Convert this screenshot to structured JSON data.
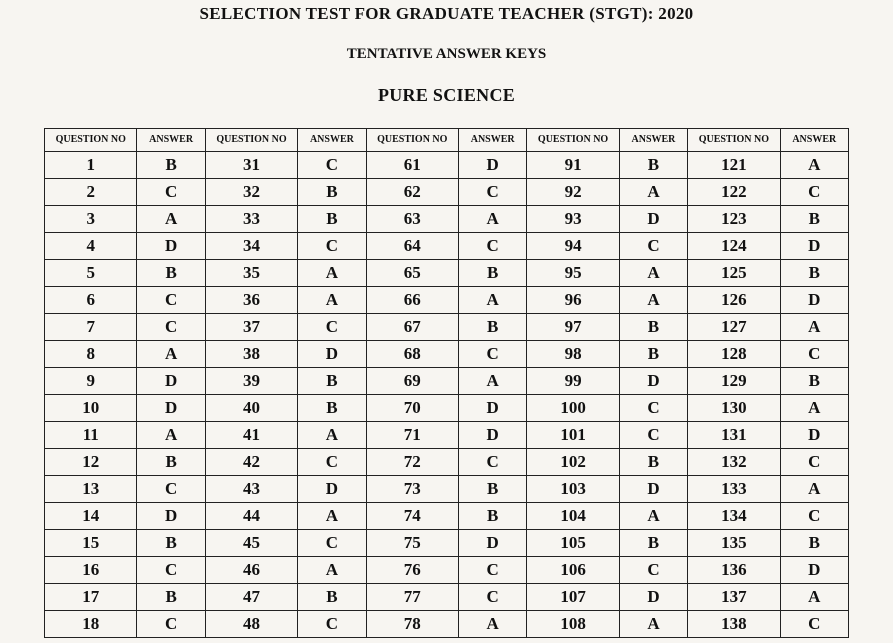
{
  "headings": {
    "main": "SELECTION TEST FOR GRADUATE TEACHER (STGT): 2020",
    "sub": "TENTATIVE ANSWER KEYS",
    "subject": "PURE SCIENCE"
  },
  "headers": {
    "q": "QUESTION NO",
    "a": "ANSWER"
  },
  "colors": {
    "page_bg": "#f7f5f1",
    "text": "#111111",
    "border": "#222222"
  },
  "typography": {
    "family": "Times New Roman",
    "h1_size_pt": 13,
    "h2_size_pt": 11,
    "h3_size_pt": 14,
    "cell_size_pt": 13,
    "header_size_pt": 8,
    "bold_all": true
  },
  "table": {
    "type": "table",
    "column_groups": 5,
    "rows_visible": 18,
    "start_numbers": [
      1,
      31,
      61,
      91,
      121
    ],
    "answers": {
      "g1": [
        "B",
        "C",
        "A",
        "D",
        "B",
        "C",
        "C",
        "A",
        "D",
        "D",
        "A",
        "B",
        "C",
        "D",
        "B",
        "C",
        "B",
        "C"
      ],
      "g2": [
        "C",
        "B",
        "B",
        "C",
        "A",
        "A",
        "C",
        "D",
        "B",
        "B",
        "A",
        "C",
        "D",
        "A",
        "C",
        "A",
        "B",
        "C"
      ],
      "g3": [
        "D",
        "C",
        "A",
        "C",
        "B",
        "A",
        "B",
        "C",
        "A",
        "D",
        "D",
        "C",
        "B",
        "B",
        "D",
        "C",
        "C",
        "A"
      ],
      "g4": [
        "B",
        "A",
        "D",
        "C",
        "A",
        "A",
        "B",
        "B",
        "D",
        "C",
        "C",
        "B",
        "D",
        "A",
        "B",
        "C",
        "D",
        "A"
      ],
      "g5": [
        "A",
        "C",
        "B",
        "D",
        "B",
        "D",
        "A",
        "C",
        "B",
        "A",
        "D",
        "C",
        "A",
        "C",
        "B",
        "D",
        "A",
        "C"
      ]
    }
  }
}
